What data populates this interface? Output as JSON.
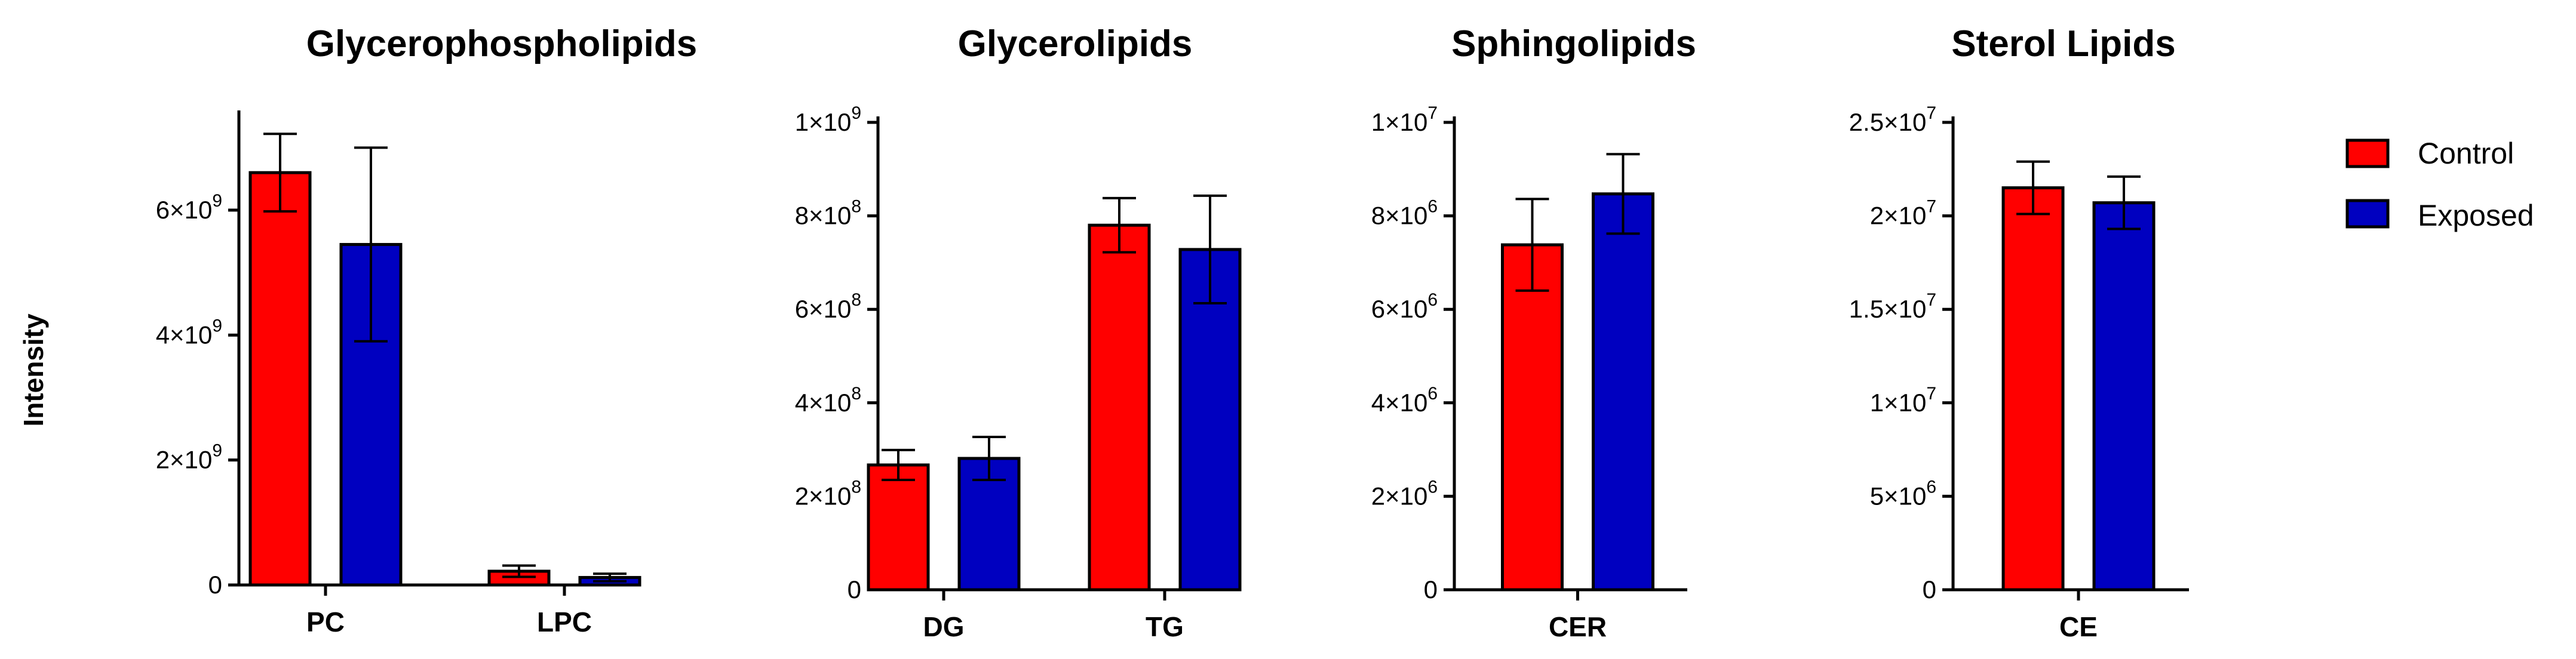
{
  "colors": {
    "control": "#ff0000",
    "exposed": "#0000c0",
    "axis": "#000000"
  },
  "legend": {
    "placement": "right",
    "items": [
      "Control",
      "Exposed"
    ]
  },
  "y_axis_label": "Intensity",
  "chart_data": [
    {
      "type": "bar",
      "title": "Glycerophospholipids",
      "categories": [
        "PC",
        "LPC"
      ],
      "series": [
        {
          "name": "Control",
          "values": [
            6600000000.0,
            220000000.0
          ],
          "errors": [
            620000000.0,
            90000000.0
          ]
        },
        {
          "name": "Exposed",
          "values": [
            5450000000.0,
            120000000.0
          ],
          "errors": [
            1550000000.0,
            60000000.0
          ]
        }
      ],
      "ylim": [
        0,
        7500000000.0
      ],
      "ticks": [
        {
          "value": 0,
          "mantissa": "0",
          "exp": ""
        },
        {
          "value": 2000000000.0,
          "mantissa": "2×10",
          "exp": "9"
        },
        {
          "value": 4000000000.0,
          "mantissa": "4×10",
          "exp": "9"
        },
        {
          "value": 6000000000.0,
          "mantissa": "6×10",
          "exp": "9"
        }
      ]
    },
    {
      "type": "bar",
      "title": "Glycerolipids",
      "categories": [
        "DG",
        "TG"
      ],
      "series": [
        {
          "name": "Control",
          "values": [
            267000000.0,
            780000000.0
          ],
          "errors": [
            32000000.0,
            58000000.0
          ]
        },
        {
          "name": "Exposed",
          "values": [
            281000000.0,
            728000000.0
          ],
          "errors": [
            46000000.0,
            115000000.0
          ]
        }
      ],
      "ylim": [
        0,
        1000000000.0
      ],
      "ticks": [
        {
          "value": 0,
          "mantissa": "0",
          "exp": ""
        },
        {
          "value": 200000000.0,
          "mantissa": "2×10",
          "exp": "8"
        },
        {
          "value": 400000000.0,
          "mantissa": "4×10",
          "exp": "8"
        },
        {
          "value": 600000000.0,
          "mantissa": "6×10",
          "exp": "8"
        },
        {
          "value": 800000000.0,
          "mantissa": "8×10",
          "exp": "8"
        },
        {
          "value": 1000000000.0,
          "mantissa": "1×10",
          "exp": "9"
        }
      ]
    },
    {
      "type": "bar",
      "title": "Sphingolipids",
      "categories": [
        "CER"
      ],
      "series": [
        {
          "name": "Control",
          "values": [
            7380000.0
          ],
          "errors": [
            980000.0
          ]
        },
        {
          "name": "Exposed",
          "values": [
            8470000.0
          ],
          "errors": [
            850000.0
          ]
        }
      ],
      "ylim": [
        0,
        10000000.0
      ],
      "ticks": [
        {
          "value": 0,
          "mantissa": "0",
          "exp": ""
        },
        {
          "value": 2000000.0,
          "mantissa": "2×10",
          "exp": "6"
        },
        {
          "value": 4000000.0,
          "mantissa": "4×10",
          "exp": "6"
        },
        {
          "value": 6000000.0,
          "mantissa": "6×10",
          "exp": "6"
        },
        {
          "value": 8000000.0,
          "mantissa": "8×10",
          "exp": "6"
        },
        {
          "value": 10000000.0,
          "mantissa": "1×10",
          "exp": "7"
        }
      ]
    },
    {
      "type": "bar",
      "title": "Sterol Lipids",
      "categories": [
        "CE"
      ],
      "series": [
        {
          "name": "Control",
          "values": [
            21500000.0
          ],
          "errors": [
            1400000.0
          ]
        },
        {
          "name": "Exposed",
          "values": [
            20700000.0
          ],
          "errors": [
            1400000.0
          ]
        }
      ],
      "ylim": [
        0,
        25000000.0
      ],
      "ticks": [
        {
          "value": 0,
          "mantissa": "0",
          "exp": ""
        },
        {
          "value": 5000000.0,
          "mantissa": "5×10",
          "exp": "6"
        },
        {
          "value": 10000000.0,
          "mantissa": "1×10",
          "exp": "7"
        },
        {
          "value": 15000000.0,
          "mantissa": "1.5×10",
          "exp": "7"
        },
        {
          "value": 20000000.0,
          "mantissa": "2×10",
          "exp": "7"
        },
        {
          "value": 25000000.0,
          "mantissa": "2.5×10",
          "exp": "7"
        }
      ]
    }
  ]
}
